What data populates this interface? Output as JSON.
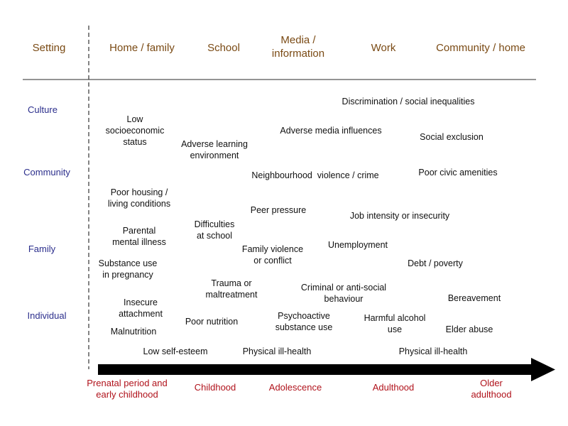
{
  "header": {
    "setting": "Setting",
    "home_family": "Home / family",
    "school": "School",
    "media_line1": "Media /",
    "media_line2": "information",
    "work": "Work",
    "community_home": "Community / home"
  },
  "levels": {
    "culture": "Culture",
    "community": "Community",
    "family": "Family",
    "individual": "Individual"
  },
  "factors": {
    "discrimination": "Discrimination / social inequalities",
    "low_ses_1": "Low",
    "low_ses_2": "socioeconomic",
    "low_ses_3": "status",
    "adverse_media": "Adverse media influences",
    "social_exclusion": "Social exclusion",
    "adverse_learning_1": "Adverse learning",
    "adverse_learning_2": "environment",
    "neighbourhood": "Neighbourhood  violence / crime",
    "poor_civic": "Poor civic amenities",
    "poor_housing_1": "Poor housing /",
    "poor_housing_2": "living conditions",
    "peer_pressure": "Peer pressure",
    "job_intensity": "Job intensity or insecurity",
    "parental_1": "Parental",
    "parental_2": "mental illness",
    "difficulties_1": "Difficulties",
    "difficulties_2": "at school",
    "unemployment": "Unemployment",
    "family_violence_1": "Family violence",
    "family_violence_2": "or conflict",
    "substance_preg_1": "Substance use",
    "substance_preg_2": "in pregnancy",
    "debt": "Debt / poverty",
    "trauma_1": "Trauma or",
    "trauma_2": "maltreatment",
    "criminal_1": "Criminal or anti-social",
    "criminal_2": "behaviour",
    "bereavement": "Bereavement",
    "insecure_1": "Insecure",
    "insecure_2": "attachment",
    "poor_nutrition": "Poor nutrition",
    "psychoactive_1": "Psychoactive",
    "psychoactive_2": "substance use",
    "harmful_alcohol_1": "Harmful alcohol",
    "harmful_alcohol_2": "use",
    "malnutrition": "Malnutrition",
    "elder_abuse": "Elder abuse",
    "low_self_esteem": "Low self-esteem",
    "physical_ill_1": "Physical ill-health",
    "physical_ill_2": "Physical ill-health"
  },
  "stages": {
    "prenatal_1": "Prenatal period and",
    "prenatal_2": "early childhood",
    "childhood": "Childhood",
    "adolescence": "Adolescence",
    "adulthood": "Adulthood",
    "older_1": "Older",
    "older_2": "adulthood"
  },
  "colors": {
    "header": "#7a4a14",
    "level": "#2b2e8c",
    "stage": "#b0121b",
    "arrow": "#000000"
  }
}
